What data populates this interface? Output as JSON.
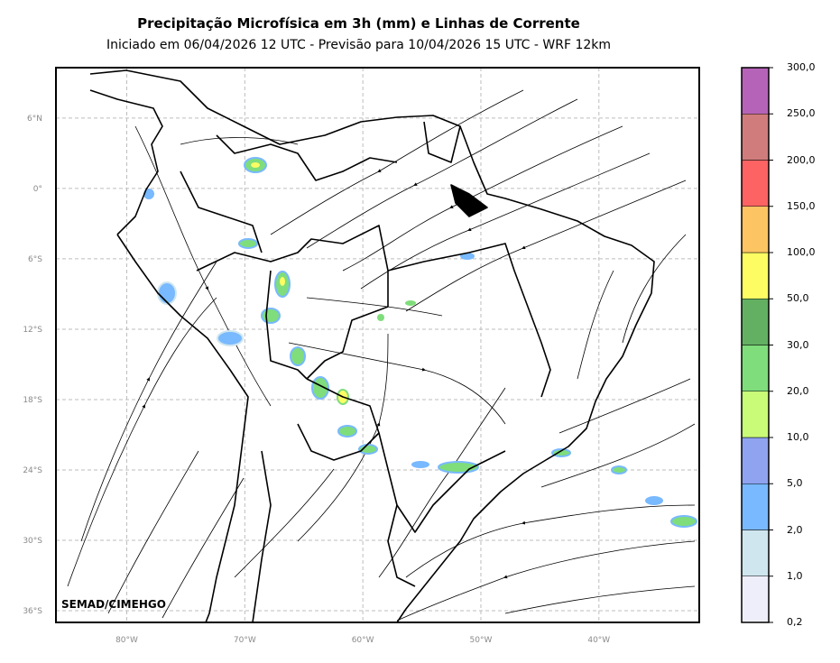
{
  "title": "Precipitação Microfísica em 3h (mm) e Linhas de Corrente",
  "subtitle": "Iniciado em 06/04/2026 12 UTC - Previsão para 10/04/2026 15 UTC - WRF 12km",
  "credit": "SEMAD/CIMEHGO",
  "map": {
    "lon_range": [
      -86,
      -31.5
    ],
    "lat_range": [
      -37,
      10.3
    ],
    "lon_ticks": [
      {
        "value": -80,
        "label": "80°W"
      },
      {
        "value": -70,
        "label": "70°W"
      },
      {
        "value": -60,
        "label": "60°W"
      },
      {
        "value": -50,
        "label": "50°W"
      },
      {
        "value": -40,
        "label": "40°W"
      }
    ],
    "lat_ticks": [
      {
        "value": 6,
        "label": "6°N"
      },
      {
        "value": 0,
        "label": "0°"
      },
      {
        "value": -6,
        "label": "6°S"
      },
      {
        "value": -12,
        "label": "12°S"
      },
      {
        "value": -18,
        "label": "18°S"
      },
      {
        "value": -24,
        "label": "24°S"
      },
      {
        "value": -30,
        "label": "30°S"
      },
      {
        "value": -36,
        "label": "36°S"
      }
    ],
    "grid": true,
    "grid_color": "#bdbdbd"
  },
  "colorbar": {
    "labels": [
      "0,2",
      "1,0",
      "2,0",
      "5,0",
      "10,0",
      "20,0",
      "30,0",
      "50,0",
      "100,0",
      "150,0",
      "200,0",
      "250,0",
      "300,0"
    ],
    "colors": [
      "#eeeefb",
      "#cfe6ef",
      "#78b9ff",
      "#8fa3f0",
      "#c9fb78",
      "#7fdd7b",
      "#63b063",
      "#fdfd63",
      "#fdc463",
      "#fd6363",
      "#d07c7c",
      "#b563b8"
    ]
  }
}
